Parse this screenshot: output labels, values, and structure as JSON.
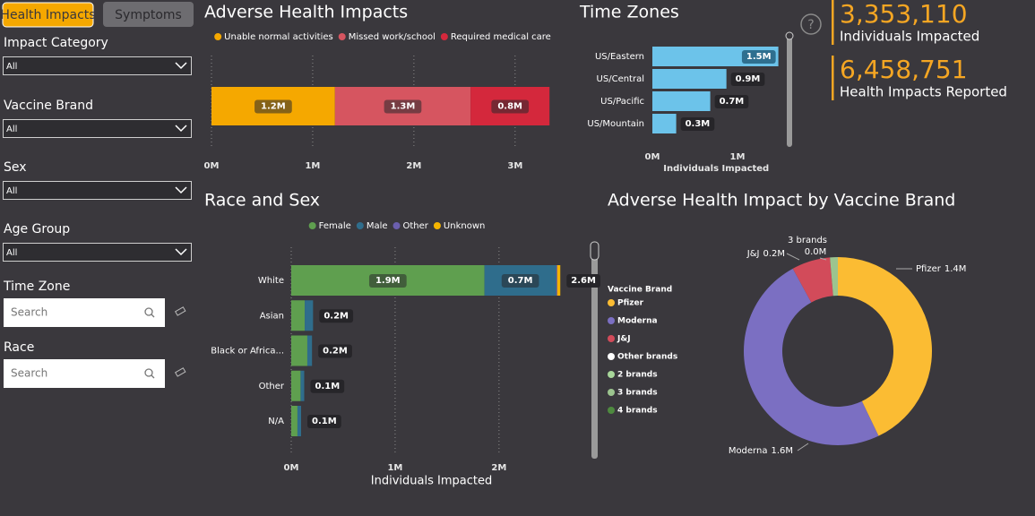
{
  "tabs": [
    "Health Impacts",
    "Symptoms"
  ],
  "filters": [
    {
      "label": "Impact Category",
      "value": "All"
    },
    {
      "label": "Vaccine Brand",
      "value": "All"
    },
    {
      "label": "Sex",
      "value": "All"
    },
    {
      "label": "Age Group",
      "value": "All"
    }
  ],
  "search_filters": [
    {
      "label": "Time Zone",
      "placeholder": "Search"
    },
    {
      "label": "Race",
      "placeholder": "Search"
    }
  ],
  "help_icon": "?",
  "kpis": [
    {
      "value": "3,353,110",
      "label": "Individuals Impacted"
    },
    {
      "value": "6,458,751",
      "label": "Health Impacts Reported"
    }
  ],
  "chart_data": [
    {
      "type": "stacked-hbar",
      "title": "Adverse Health Impacts",
      "categories": [
        null
      ],
      "series": [
        {
          "name": "Unable normal activities",
          "color": "#f5a800",
          "values": [
            1220000
          ],
          "value_labels": [
            "1.2M"
          ]
        },
        {
          "name": "Missed work/school",
          "color": "#d65560",
          "values": [
            1340000
          ],
          "value_labels": [
            "1.3M"
          ]
        },
        {
          "name": "Required medical care",
          "color": "#d4283c",
          "values": [
            780000
          ],
          "value_labels": [
            "0.8M"
          ]
        }
      ],
      "xlim": [
        0,
        3400000
      ],
      "xticks": [
        {
          "value": 0,
          "label": "0M"
        },
        {
          "value": 1000000,
          "label": "1M"
        },
        {
          "value": 2000000,
          "label": "2M"
        },
        {
          "value": 3000000,
          "label": "3M"
        }
      ],
      "grid": true,
      "legend": "top"
    },
    {
      "type": "hbar",
      "title": "Time Zones",
      "categories": [
        "US/Eastern",
        "US/Central",
        "US/Pacific",
        "US/Mountain"
      ],
      "values": [
        1480000,
        870000,
        680000,
        280000
      ],
      "value_labels": [
        "1.5M",
        "0.9M",
        "0.7M",
        "0.3M"
      ],
      "color": "#6cc3ea",
      "xlabel": "Individuals Impacted",
      "xlim": [
        0,
        1500000
      ],
      "xticks": [
        {
          "value": 0,
          "label": "0M"
        },
        {
          "value": 1000000,
          "label": "1M"
        }
      ],
      "grid": false
    },
    {
      "type": "stacked-hbar",
      "title": "Race and Sex",
      "categories": [
        "White",
        "Asian",
        "Black or Africa...",
        "Other",
        "N/A"
      ],
      "series": [
        {
          "name": "Female",
          "color": "#5f9f4f",
          "values": [
            1860000,
            130000,
            155000,
            90000,
            60000
          ],
          "value_labels": [
            "1.9M",
            null,
            null,
            null,
            null
          ]
        },
        {
          "name": "Male",
          "color": "#2f6d8c",
          "values": [
            690000,
            80000,
            45000,
            35000,
            35000
          ],
          "value_labels": [
            "0.7M",
            null,
            null,
            null,
            null
          ]
        },
        {
          "name": "Other",
          "color": "#6b5fae",
          "values": [
            10000,
            0,
            0,
            0,
            0
          ]
        },
        {
          "name": "Unknown",
          "color": "#f5b400",
          "values": [
            30000,
            0,
            0,
            0,
            0
          ]
        }
      ],
      "totals": [
        2590000,
        210000,
        200000,
        125000,
        95000
      ],
      "total_labels": [
        "2.6M",
        "0.2M",
        "0.2M",
        "0.1M",
        "0.1M"
      ],
      "xlabel": "Individuals Impacted",
      "xlim": [
        0,
        2700000
      ],
      "xticks": [
        {
          "value": 0,
          "label": "0M"
        },
        {
          "value": 1000000,
          "label": "1M"
        },
        {
          "value": 2000000,
          "label": "2M"
        }
      ],
      "grid": true,
      "legend": "top"
    },
    {
      "type": "donut",
      "title": "Adverse Health Impact by Vaccine Brand",
      "categories": [
        "Pfizer",
        "Moderna",
        "J&J",
        "3 brands"
      ],
      "values": [
        1430000,
        1640000,
        220000,
        45000
      ],
      "value_labels": [
        "1.4M",
        "1.6M",
        "0.2M",
        "0.0M"
      ],
      "colors": [
        "#fbbc33",
        "#7b6fc2",
        "#d24b5a",
        "#9cc48f"
      ],
      "legend_title": "Vaccine Brand",
      "legend_items": [
        {
          "name": "Pfizer",
          "color": "#fbbc33"
        },
        {
          "name": "Moderna",
          "color": "#7b6fc2"
        },
        {
          "name": "J&J",
          "color": "#d24b5a"
        },
        {
          "name": "Other brands",
          "color": "#ffffff"
        },
        {
          "name": "2 brands",
          "color": "#a8d69a"
        },
        {
          "name": "3 brands",
          "color": "#9cc48f"
        },
        {
          "name": "4 brands",
          "color": "#4e8a3f"
        }
      ]
    }
  ]
}
